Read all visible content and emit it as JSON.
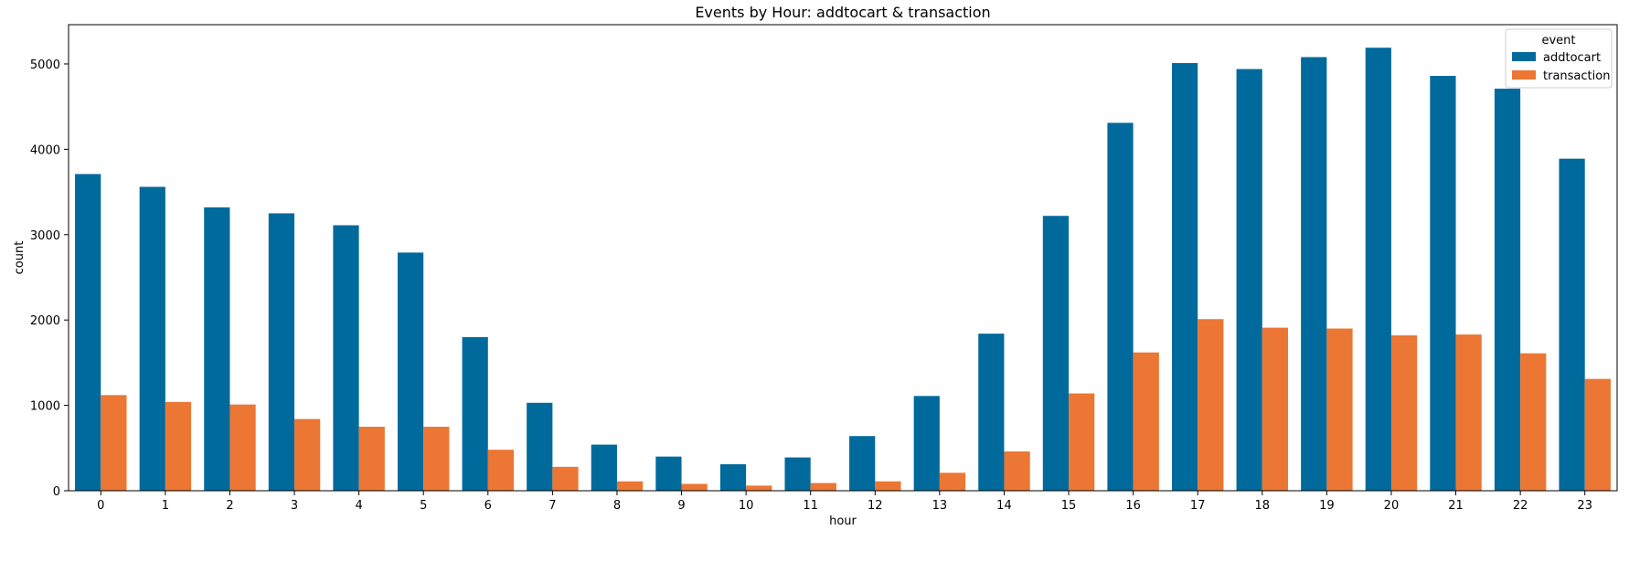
{
  "chart_data": {
    "type": "bar",
    "title": "Events by Hour: addtocart & transaction",
    "xlabel": "hour",
    "ylabel": "count",
    "categories": [
      "0",
      "1",
      "2",
      "3",
      "4",
      "5",
      "6",
      "7",
      "8",
      "9",
      "10",
      "11",
      "12",
      "13",
      "14",
      "15",
      "16",
      "17",
      "18",
      "19",
      "20",
      "21",
      "22",
      "23"
    ],
    "ylim": [
      0,
      5460
    ],
    "yticks": [
      0,
      1000,
      2000,
      3000,
      4000,
      5000
    ],
    "grid": false,
    "legend": {
      "title": "event",
      "placement": "top-right"
    },
    "series": [
      {
        "name": "addtocart",
        "color": "#006a9c",
        "values": [
          3710,
          3560,
          3320,
          3250,
          3110,
          2790,
          1800,
          1030,
          540,
          400,
          310,
          390,
          640,
          1110,
          1840,
          3220,
          4310,
          5010,
          4940,
          5080,
          5190,
          4860,
          4710,
          3890
        ]
      },
      {
        "name": "transaction",
        "color": "#ec7633",
        "values": [
          1120,
          1040,
          1010,
          840,
          750,
          750,
          480,
          280,
          110,
          80,
          60,
          90,
          110,
          210,
          460,
          1140,
          1620,
          2010,
          1910,
          1900,
          1820,
          1830,
          1610,
          1310
        ]
      }
    ]
  }
}
